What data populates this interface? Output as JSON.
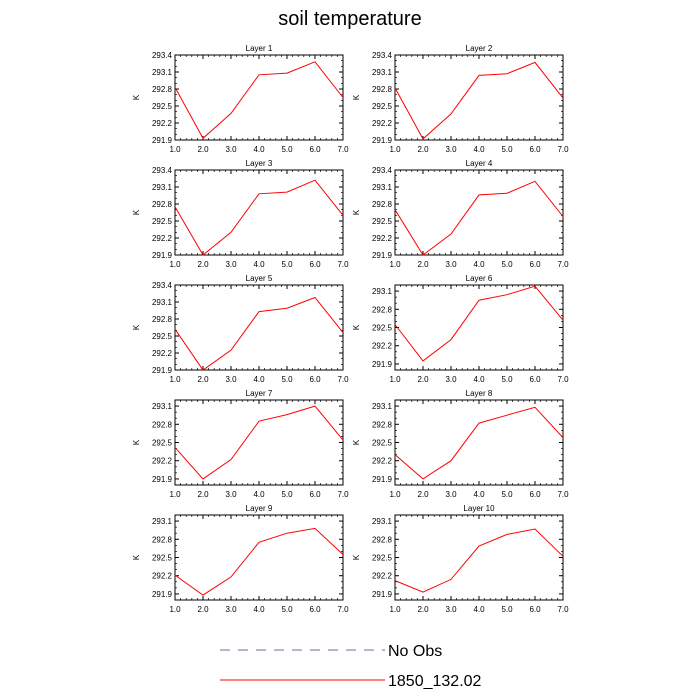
{
  "title": "soil temperature",
  "chart_data": [
    {
      "type": "line",
      "title": "Layer 1",
      "ylabel": "K",
      "x": [
        1,
        2,
        3,
        4,
        5,
        6,
        7
      ],
      "ylim": [
        291.9,
        293.4
      ],
      "yticks": [
        "293.4",
        "293.1",
        "292.8",
        "292.5",
        "292.2",
        "291.9"
      ],
      "xticks": [
        "1.0",
        "2.0",
        "3.0",
        "4.0",
        "5.0",
        "6.0",
        "7.0"
      ],
      "series": [
        {
          "name": "1850_132.02",
          "color": "#ff0000",
          "values": [
            292.83,
            291.93,
            292.37,
            293.05,
            293.08,
            293.28,
            292.65
          ]
        }
      ]
    },
    {
      "type": "line",
      "title": "Layer 2",
      "ylabel": "K",
      "x": [
        1,
        2,
        3,
        4,
        5,
        6,
        7
      ],
      "ylim": [
        291.9,
        293.4
      ],
      "yticks": [
        "293.4",
        "293.1",
        "292.8",
        "292.5",
        "292.2",
        "291.9"
      ],
      "xticks": [
        "1.0",
        "2.0",
        "3.0",
        "4.0",
        "5.0",
        "6.0",
        "7.0"
      ],
      "series": [
        {
          "name": "1850_132.02",
          "color": "#ff0000",
          "values": [
            292.82,
            291.92,
            292.36,
            293.04,
            293.07,
            293.27,
            292.64
          ]
        }
      ]
    },
    {
      "type": "line",
      "title": "Layer 3",
      "ylabel": "K",
      "x": [
        1,
        2,
        3,
        4,
        5,
        6,
        7
      ],
      "ylim": [
        291.9,
        293.4
      ],
      "yticks": [
        "293.4",
        "293.1",
        "292.8",
        "292.5",
        "292.2",
        "291.9"
      ],
      "xticks": [
        "1.0",
        "2.0",
        "3.0",
        "4.0",
        "5.0",
        "6.0",
        "7.0"
      ],
      "series": [
        {
          "name": "1850_132.02",
          "color": "#ff0000",
          "values": [
            292.75,
            291.9,
            292.3,
            292.98,
            293.01,
            293.22,
            292.6
          ]
        }
      ]
    },
    {
      "type": "line",
      "title": "Layer 4",
      "ylabel": "K",
      "x": [
        1,
        2,
        3,
        4,
        5,
        6,
        7
      ],
      "ylim": [
        291.9,
        293.4
      ],
      "yticks": [
        "293.4",
        "293.1",
        "292.8",
        "292.5",
        "292.2",
        "291.9"
      ],
      "xticks": [
        "1.0",
        "2.0",
        "3.0",
        "4.0",
        "5.0",
        "6.0",
        "7.0"
      ],
      "series": [
        {
          "name": "1850_132.02",
          "color": "#ff0000",
          "values": [
            292.7,
            291.9,
            292.27,
            292.96,
            292.99,
            293.2,
            292.58
          ]
        }
      ]
    },
    {
      "type": "line",
      "title": "Layer 5",
      "ylabel": "K",
      "x": [
        1,
        2,
        3,
        4,
        5,
        6,
        7
      ],
      "ylim": [
        291.9,
        293.4
      ],
      "yticks": [
        "293.4",
        "293.1",
        "292.8",
        "292.5",
        "292.2",
        "291.9"
      ],
      "xticks": [
        "1.0",
        "2.0",
        "3.0",
        "4.0",
        "5.0",
        "6.0",
        "7.0"
      ],
      "series": [
        {
          "name": "1850_132.02",
          "color": "#ff0000",
          "values": [
            292.62,
            291.9,
            292.25,
            292.93,
            292.99,
            293.18,
            292.56
          ]
        }
      ]
    },
    {
      "type": "line",
      "title": "Layer 6",
      "ylabel": "K",
      "x": [
        1,
        2,
        3,
        4,
        5,
        6,
        7
      ],
      "ylim": [
        291.8,
        293.2
      ],
      "yticks": [
        "293.1",
        "292.8",
        "292.5",
        "292.2",
        "291.9"
      ],
      "xticks": [
        "1.0",
        "2.0",
        "3.0",
        "4.0",
        "5.0",
        "6.0",
        "7.0"
      ],
      "series": [
        {
          "name": "1850_132.02",
          "color": "#ff0000",
          "values": [
            292.55,
            291.95,
            292.3,
            292.95,
            293.04,
            293.18,
            292.62
          ]
        }
      ]
    },
    {
      "type": "line",
      "title": "Layer 7",
      "ylabel": "K",
      "x": [
        1,
        2,
        3,
        4,
        5,
        6,
        7
      ],
      "ylim": [
        291.8,
        293.2
      ],
      "yticks": [
        "293.1",
        "292.8",
        "292.5",
        "292.2",
        "291.9"
      ],
      "xticks": [
        "1.0",
        "2.0",
        "3.0",
        "4.0",
        "5.0",
        "6.0",
        "7.0"
      ],
      "series": [
        {
          "name": "1850_132.02",
          "color": "#ff0000",
          "values": [
            292.42,
            291.9,
            292.22,
            292.85,
            292.96,
            293.1,
            292.54
          ]
        }
      ]
    },
    {
      "type": "line",
      "title": "Layer 8",
      "ylabel": "K",
      "x": [
        1,
        2,
        3,
        4,
        5,
        6,
        7
      ],
      "ylim": [
        291.8,
        293.2
      ],
      "yticks": [
        "293.1",
        "292.8",
        "292.5",
        "292.2",
        "291.9"
      ],
      "xticks": [
        "1.0",
        "2.0",
        "3.0",
        "4.0",
        "5.0",
        "6.0",
        "7.0"
      ],
      "series": [
        {
          "name": "1850_132.02",
          "color": "#ff0000",
          "values": [
            292.3,
            291.9,
            292.2,
            292.82,
            292.95,
            293.08,
            292.58
          ]
        }
      ]
    },
    {
      "type": "line",
      "title": "Layer 9",
      "ylabel": "K",
      "x": [
        1,
        2,
        3,
        4,
        5,
        6,
        7
      ],
      "ylim": [
        291.8,
        293.2
      ],
      "yticks": [
        "293.1",
        "292.8",
        "292.5",
        "292.2",
        "291.9"
      ],
      "xticks": [
        "1.0",
        "2.0",
        "3.0",
        "4.0",
        "5.0",
        "6.0",
        "7.0"
      ],
      "series": [
        {
          "name": "1850_132.02",
          "color": "#ff0000",
          "values": [
            292.21,
            291.88,
            292.18,
            292.75,
            292.9,
            292.98,
            292.55
          ]
        }
      ]
    },
    {
      "type": "line",
      "title": "Layer 10",
      "ylabel": "K",
      "x": [
        1,
        2,
        3,
        4,
        5,
        6,
        7
      ],
      "ylim": [
        291.8,
        293.2
      ],
      "yticks": [
        "293.1",
        "292.8",
        "292.5",
        "292.2",
        "291.9"
      ],
      "xticks": [
        "1.0",
        "2.0",
        "3.0",
        "4.0",
        "5.0",
        "6.0",
        "7.0"
      ],
      "series": [
        {
          "name": "1850_132.02",
          "color": "#ff0000",
          "values": [
            292.12,
            291.93,
            292.14,
            292.69,
            292.88,
            292.97,
            292.52
          ]
        }
      ]
    }
  ],
  "legend": {
    "entries": [
      {
        "label": "No Obs",
        "color": "#6b6b9c",
        "style": "dashed"
      },
      {
        "label": "1850_132.02",
        "color": "#ff0000",
        "style": "solid"
      }
    ]
  }
}
